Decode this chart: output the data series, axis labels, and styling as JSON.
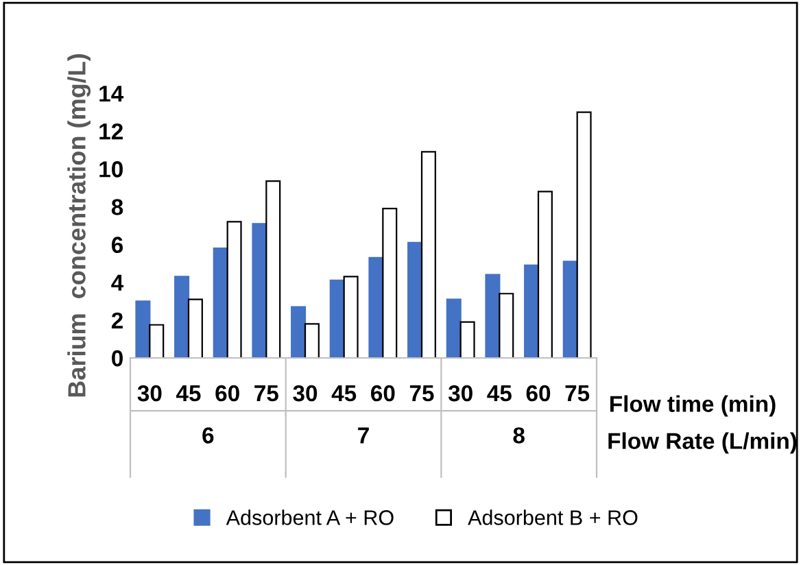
{
  "chart_data": {
    "type": "bar",
    "ylabel": "Barium  concentration (mg/L)",
    "xlabel": "Flow time (min)",
    "categories": [
      "30",
      "45",
      "60",
      "75",
      "30",
      "45",
      "60",
      "75",
      "30",
      "45",
      "60",
      "75"
    ],
    "series": [
      {
        "name": "Adsorbent A + RO",
        "color": "#4472c4",
        "values": [
          3.0,
          4.3,
          5.8,
          7.1,
          2.7,
          4.1,
          5.3,
          6.1,
          3.1,
          4.4,
          4.9,
          5.1
        ]
      },
      {
        "name": "Adsorbent B + RO",
        "color": "#ffffff",
        "values": [
          1.75,
          3.1,
          7.2,
          9.35,
          1.8,
          4.3,
          7.9,
          10.9,
          1.9,
          3.4,
          8.8,
          13.0
        ]
      }
    ],
    "ylim": [
      0,
      14
    ],
    "yticks": [
      0,
      2,
      4,
      6,
      8,
      10,
      12,
      14
    ],
    "grid": false,
    "legend": "bottom",
    "annotations": [
      "6",
      "7",
      "8",
      "Flow Rate (L/min)"
    ]
  }
}
